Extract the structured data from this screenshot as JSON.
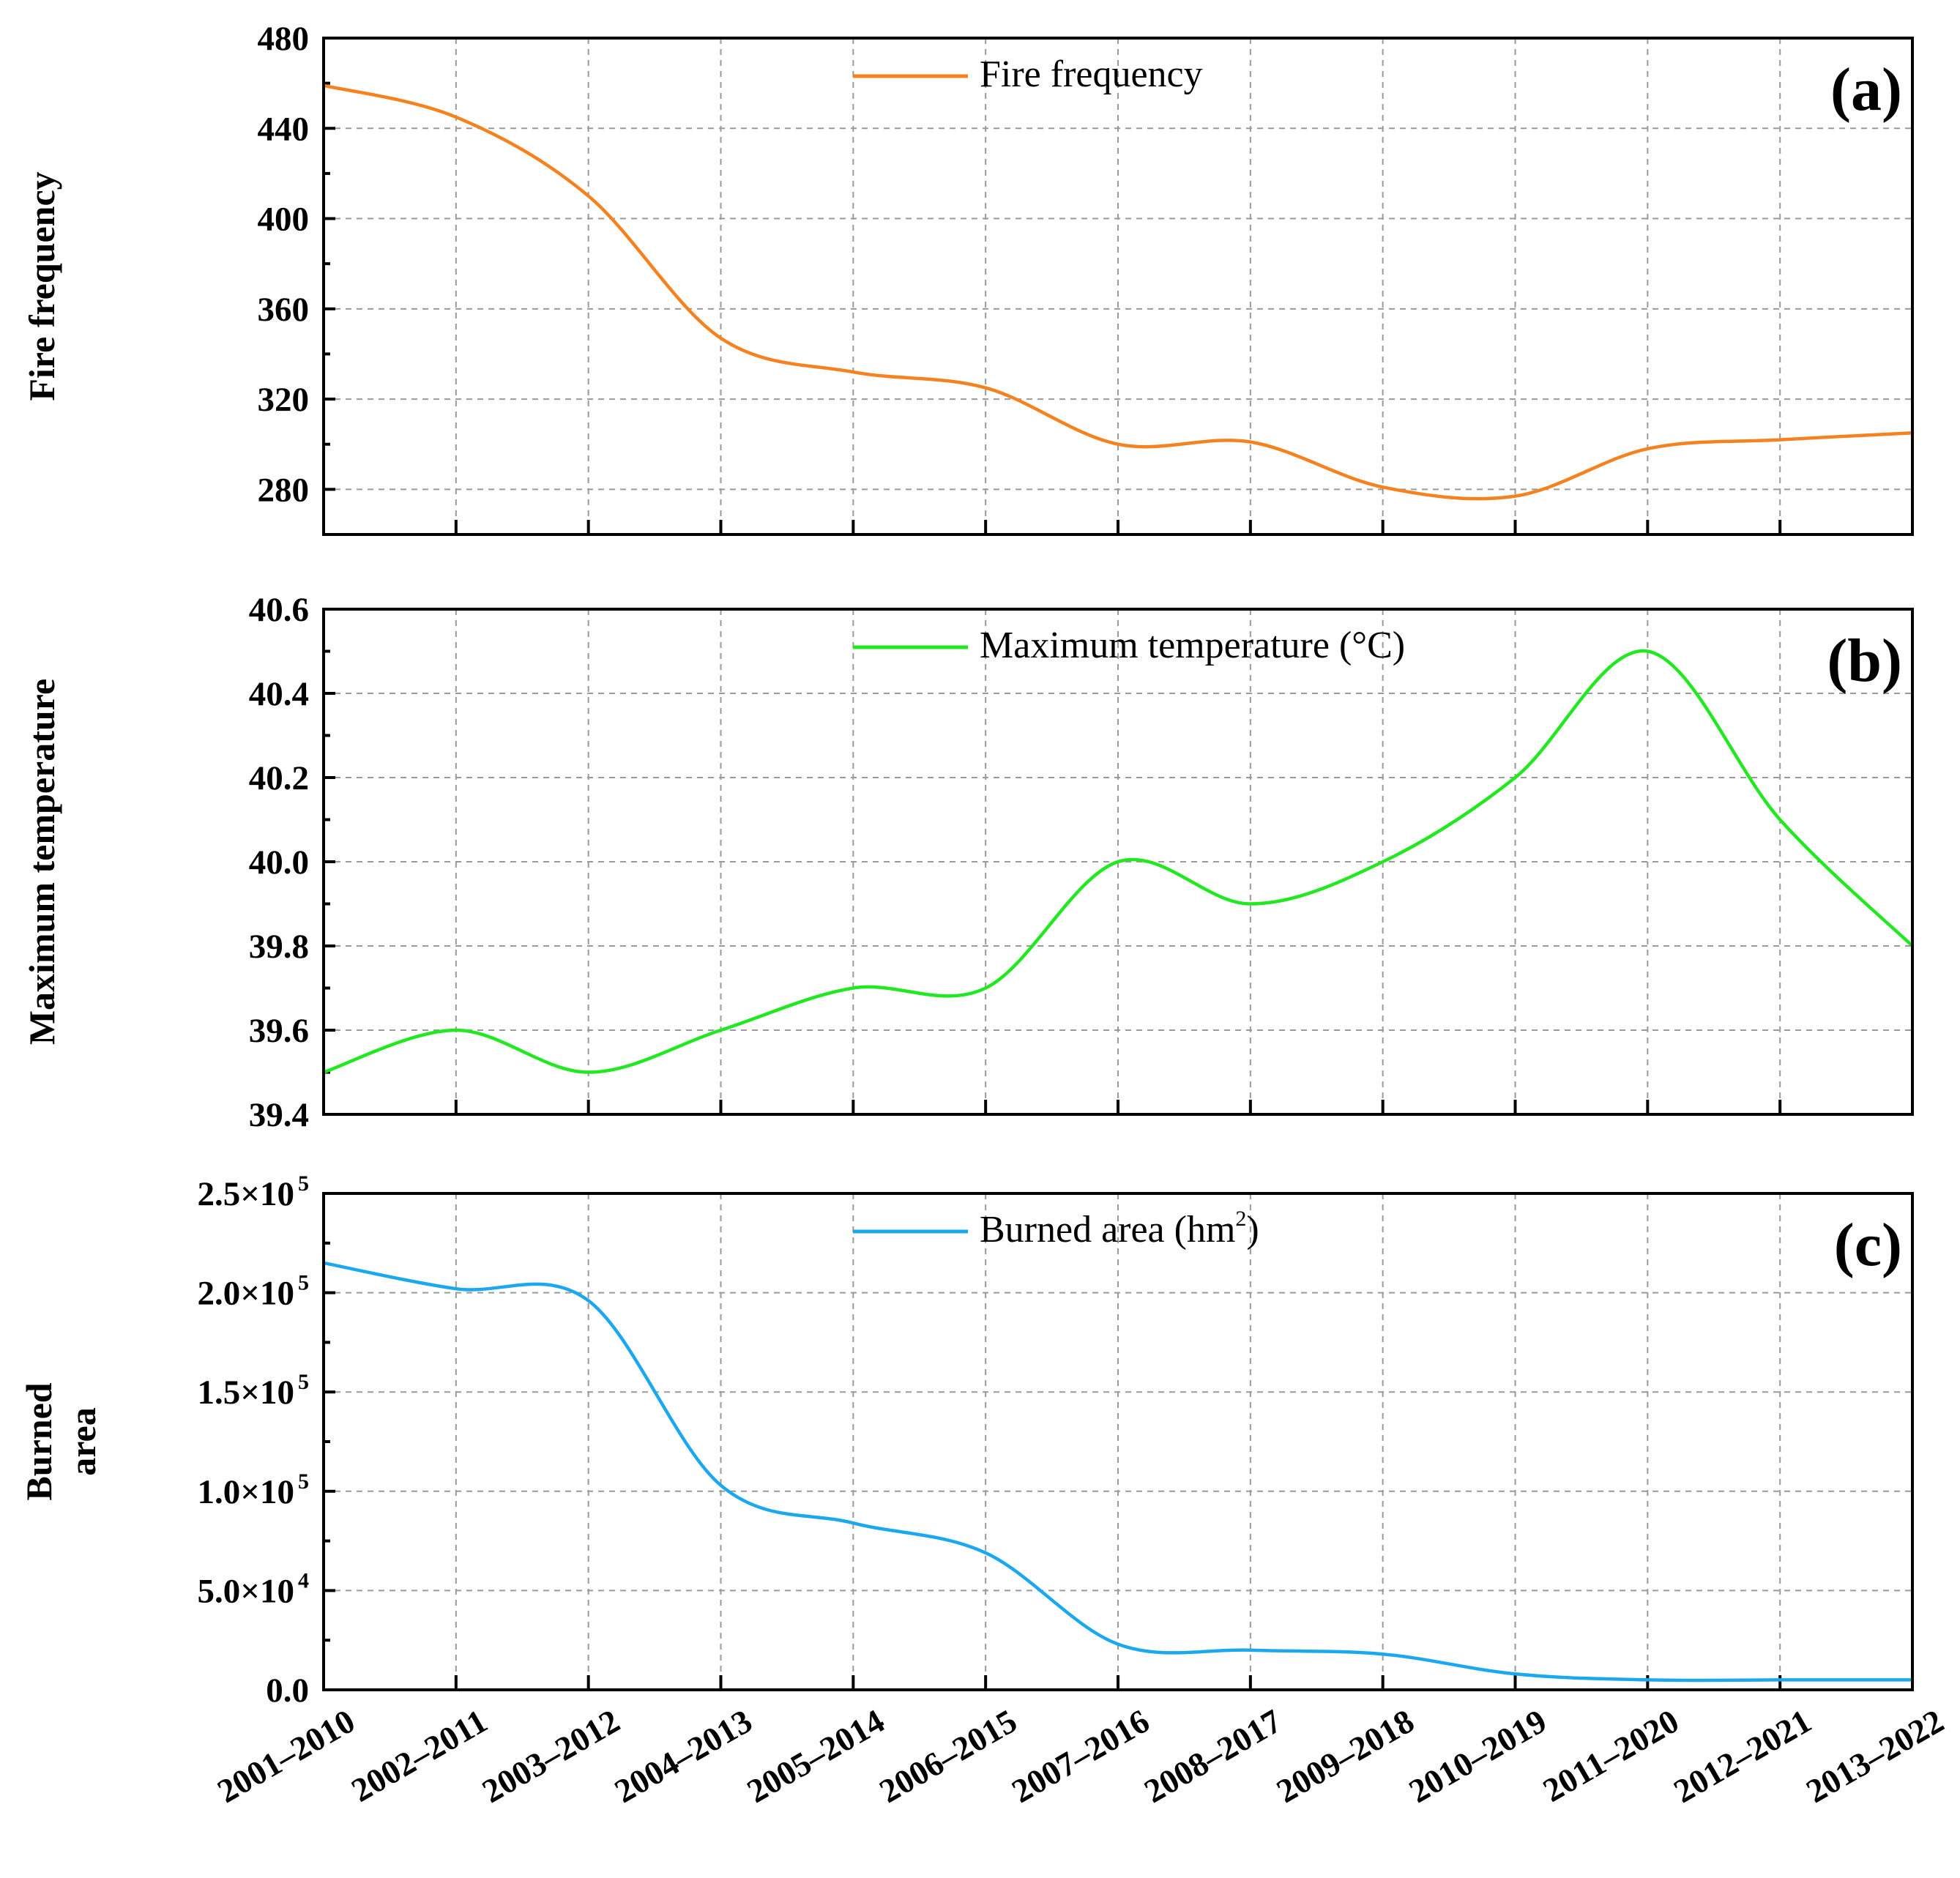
{
  "chart_data": [
    {
      "type": "line",
      "panel": "(a)",
      "ylabel": "Fire frequency",
      "legend": "Fire frequency",
      "legend_unit": "",
      "legend_sup": "",
      "color": "#F5821F",
      "ylim": [
        260,
        480
      ],
      "yticks": [
        {
          "v": 280,
          "t": "280"
        },
        {
          "v": 320,
          "t": "320"
        },
        {
          "v": 360,
          "t": "360"
        },
        {
          "v": 400,
          "t": "400"
        },
        {
          "v": 440,
          "t": "440"
        },
        {
          "v": 480,
          "t": "480"
        }
      ],
      "values": [
        459,
        445,
        410,
        347,
        332,
        325,
        300,
        301,
        281,
        277,
        298,
        302,
        305
      ],
      "show_xlabels": false
    },
    {
      "type": "line",
      "panel": "(b)",
      "ylabel": "Maximum temperature",
      "legend": "Maximum temperature (°C)",
      "legend_unit": "",
      "legend_sup": "",
      "color": "#22E822",
      "ylim": [
        39.4,
        40.6
      ],
      "yticks": [
        {
          "v": 39.4,
          "t": "39.4"
        },
        {
          "v": 39.6,
          "t": "39.6"
        },
        {
          "v": 39.8,
          "t": "39.8"
        },
        {
          "v": 40.0,
          "t": "40.0"
        },
        {
          "v": 40.2,
          "t": "40.2"
        },
        {
          "v": 40.4,
          "t": "40.4"
        },
        {
          "v": 40.6,
          "t": "40.6"
        }
      ],
      "values": [
        39.5,
        39.6,
        39.5,
        39.6,
        39.7,
        39.7,
        40.0,
        39.9,
        40.0,
        40.2,
        40.5,
        40.1,
        39.8
      ],
      "show_xlabels": false
    },
    {
      "type": "line",
      "panel": "(c)",
      "ylabel": "Burned area",
      "ylabel_lines": [
        "Burned",
        "area"
      ],
      "legend": "Burned area (hm",
      "legend_sup": "2",
      "legend_unit": ")",
      "color": "#1CA8EE",
      "ylim": [
        0,
        250000
      ],
      "yticks": [
        {
          "v": 0,
          "t": "0.0",
          "sup": ""
        },
        {
          "v": 50000,
          "t": "5.0×10",
          "sup": "4"
        },
        {
          "v": 100000,
          "t": "1.0×10",
          "sup": "5"
        },
        {
          "v": 150000,
          "t": "1.5×10",
          "sup": "5"
        },
        {
          "v": 200000,
          "t": "2.0×10",
          "sup": "5"
        },
        {
          "v": 250000,
          "t": "2.5×10",
          "sup": "5"
        }
      ],
      "values": [
        215000,
        202000,
        196000,
        103000,
        84000,
        69000,
        23000,
        20000,
        18000,
        8000,
        5000,
        5000,
        5000
      ],
      "show_xlabels": true
    }
  ],
  "categories": [
    "2001–2010",
    "2002–2011",
    "2003–2012",
    "2004–2013",
    "2005–2014",
    "2006–2015",
    "2007–2016",
    "2008–2017",
    "2009–2018",
    "2010–2019",
    "2011–2020",
    "2012–2021",
    "2013–2022"
  ]
}
